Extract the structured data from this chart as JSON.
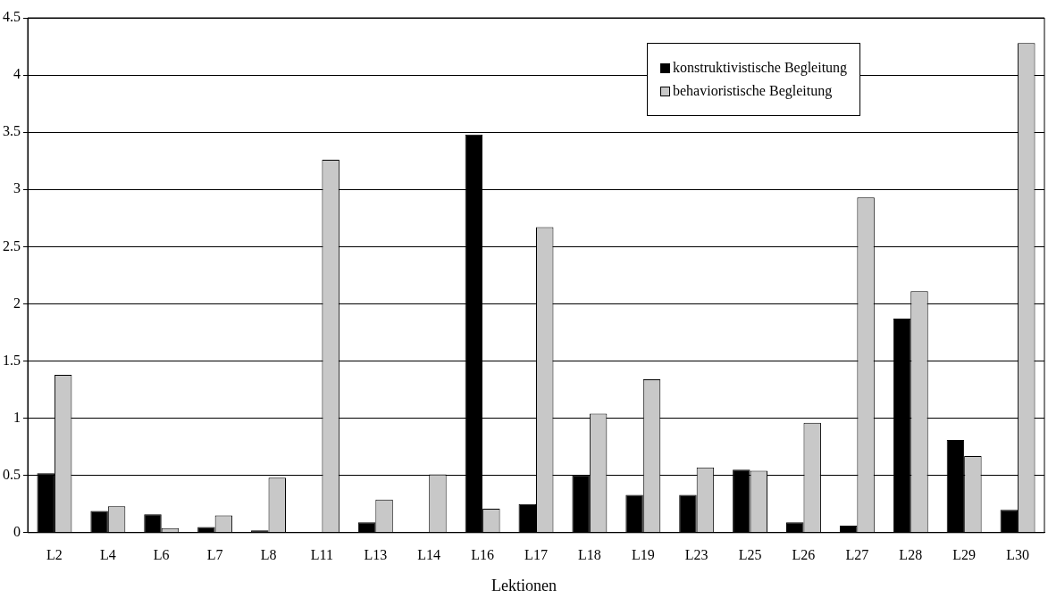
{
  "chart_data": {
    "type": "bar",
    "xlabel": "Lektionen",
    "categories": [
      "L2",
      "L4",
      "L6",
      "L7",
      "L8",
      "L11",
      "L13",
      "L14",
      "L16",
      "L17",
      "L18",
      "L19",
      "L23",
      "L25",
      "L26",
      "L27",
      "L28",
      "L29",
      "L30"
    ],
    "series": [
      {
        "name": "konstruktivistische Begleitung",
        "color": "#000000",
        "values": [
          0.52,
          0.19,
          0.16,
          0.05,
          0.02,
          0,
          0.09,
          0,
          3.48,
          0.25,
          0.5,
          0.33,
          0.33,
          0.55,
          0.09,
          0.06,
          1.87,
          0.81,
          0.2
        ]
      },
      {
        "name": "behavioristische Begleitung",
        "color": "#c8c8c8",
        "values": [
          1.38,
          0.23,
          0.04,
          0.15,
          0.48,
          3.26,
          0.29,
          0.51,
          0.21,
          2.67,
          1.04,
          1.34,
          0.57,
          0.54,
          0.96,
          2.93,
          2.11,
          0.67,
          4.28
        ]
      }
    ],
    "ylim": [
      0,
      4.5
    ],
    "yticks": [
      0,
      0.5,
      1,
      1.5,
      2,
      2.5,
      3,
      3.5,
      4,
      4.5
    ],
    "grid": "y",
    "legend": "top right"
  }
}
